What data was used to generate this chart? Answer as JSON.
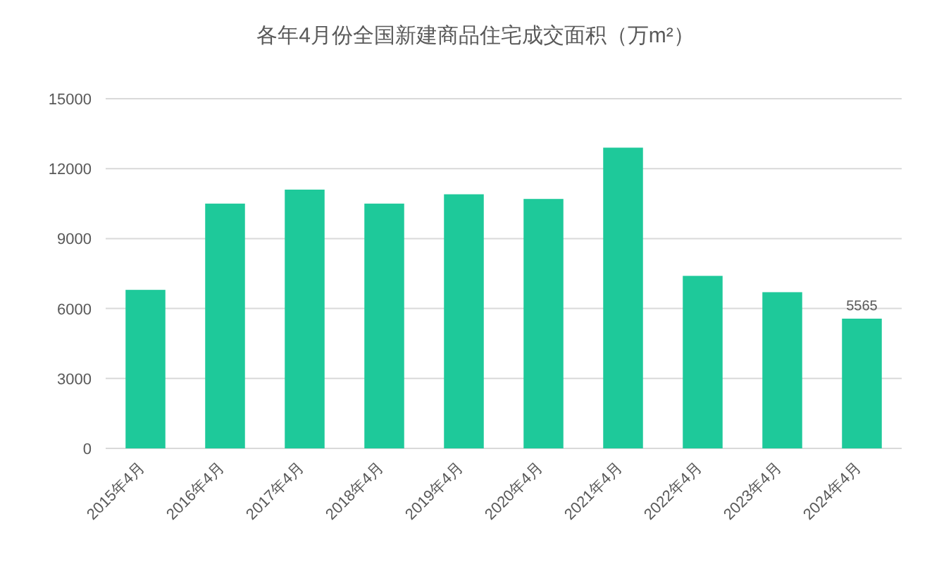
{
  "chart_data": {
    "type": "bar",
    "title": "各年4月份全国新建商品住宅成交面积（万m²）",
    "categories": [
      "2015年4月",
      "2016年4月",
      "2017年4月",
      "2018年4月",
      "2019年4月",
      "2020年4月",
      "2021年4月",
      "2022年4月",
      "2023年4月",
      "2024年4月"
    ],
    "values": [
      6800,
      10500,
      11100,
      10500,
      10900,
      10700,
      12900,
      7400,
      6700,
      5565
    ],
    "value_labels": [
      null,
      null,
      null,
      null,
      null,
      null,
      null,
      null,
      null,
      "5565"
    ],
    "color": "#1ec99a",
    "ylim": [
      0,
      15000
    ],
    "yticks": [
      0,
      3000,
      6000,
      9000,
      12000,
      15000
    ],
    "grid": "y"
  }
}
